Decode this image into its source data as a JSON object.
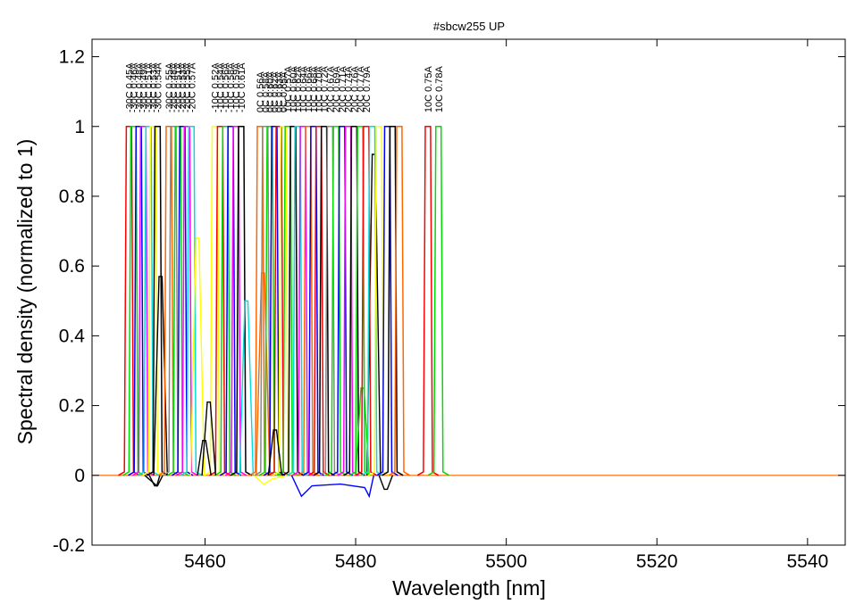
{
  "chart_data": {
    "type": "line",
    "title": "#sbcw255 UP",
    "xlabel": "Wavelength [nm]",
    "ylabel": "Spectral density (normalized to 1)",
    "xlim": [
      5445,
      5545
    ],
    "ylim": [
      -0.2,
      1.25
    ],
    "x_ticks": [
      5460,
      5480,
      5500,
      5520,
      5540
    ],
    "y_ticks": [
      -0.2,
      0,
      0.2,
      0.4,
      0.6,
      0.8,
      1,
      1.2
    ],
    "y_tick_labels": [
      "-0.2",
      "0",
      "0.2",
      "0.4",
      "0.6",
      "0.8",
      "1",
      "1.2"
    ],
    "grid": false,
    "peak_width_nm": 0.35,
    "series": [
      {
        "label": "-30C 0.45A",
        "center": 5449.9,
        "color": "#ff0000",
        "extras": []
      },
      {
        "label": "-30C 0.46A",
        "center": 5450.5,
        "color": "#00dd00",
        "extras": []
      },
      {
        "label": "-30C 0.48A",
        "center": 5451.2,
        "color": "#0000ff",
        "extras": []
      },
      {
        "label": "-30C 0.49A",
        "center": 5451.8,
        "color": "#ff00ff",
        "extras": []
      },
      {
        "label": "-30C 0.51A",
        "center": 5452.5,
        "color": "#00dddd",
        "extras": []
      },
      {
        "label": "-30C 0.53A",
        "center": 5453.1,
        "color": "#ffff00",
        "extras": []
      },
      {
        "label": "-30C 0.54A",
        "center": 5453.7,
        "color": "#000000",
        "extras": [
          [
            5453.5,
            -0.03
          ],
          [
            5454.1,
            0.57
          ]
        ]
      },
      {
        "label": "-30C 0.55A",
        "center": 5455.2,
        "color": "#ff6600",
        "extras": []
      },
      {
        "label": "-20C 0.48A",
        "center": 5455.8,
        "color": "#888888",
        "extras": []
      },
      {
        "label": "-20C 0.51A",
        "center": 5456.4,
        "color": "#00dd00",
        "extras": []
      },
      {
        "label": "-20C 0.53A",
        "center": 5457.0,
        "color": "#0000ff",
        "extras": []
      },
      {
        "label": "-20C 0.55A",
        "center": 5457.6,
        "color": "#ff00ff",
        "extras": []
      },
      {
        "label": "-20C 0.57A",
        "center": 5458.2,
        "color": "#00dddd",
        "extras": []
      },
      {
        "label": "-10C 0.52A",
        "center": 5461.3,
        "color": "#ffff00",
        "extras": [
          [
            5459.0,
            0.68
          ]
        ]
      },
      {
        "label": "-10C 0.54A",
        "center": 5462.0,
        "color": "#ff0000",
        "extras": []
      },
      {
        "label": "-10C 0.56A",
        "center": 5462.7,
        "color": "#00dd00",
        "extras": []
      },
      {
        "label": "-10C 0.58A",
        "center": 5463.4,
        "color": "#0000ff",
        "extras": []
      },
      {
        "label": "-10C 0.59A",
        "center": 5464.1,
        "color": "#ff00ff",
        "extras": []
      },
      {
        "label": "-10C 0.61A",
        "center": 5464.8,
        "color": "#000000",
        "extras": [
          [
            5460.5,
            0.21
          ],
          [
            5459.9,
            0.1
          ]
        ]
      },
      {
        "label": "0C 0.56A",
        "center": 5467.3,
        "color": "#ff6600",
        "extras": [
          [
            5467.7,
            0.58
          ]
        ]
      },
      {
        "label": "0C 0.58A",
        "center": 5468.0,
        "color": "#888888",
        "extras": []
      },
      {
        "label": "0C 0.60A",
        "center": 5468.6,
        "color": "#00dd00",
        "extras": []
      },
      {
        "label": "0C 0.62A",
        "center": 5469.2,
        "color": "#0000ff",
        "extras": []
      },
      {
        "label": "0C 0.63A",
        "center": 5469.8,
        "color": "#ff0000",
        "extras": []
      },
      {
        "label": "0C 0.65A",
        "center": 5470.4,
        "color": "#ffff00",
        "extras": []
      },
      {
        "label": "10C 0.57A",
        "center": 5471.0,
        "color": "#00dd00",
        "extras": []
      },
      {
        "label": "10C 0.60A",
        "center": 5471.7,
        "color": "#000000",
        "extras": [
          [
            5469.3,
            0.13
          ]
        ]
      },
      {
        "label": "10C 0.62A",
        "center": 5472.3,
        "color": "#00dddd",
        "extras": [
          [
            5465.5,
            0.5
          ]
        ]
      },
      {
        "label": "10C 0.64A",
        "center": 5473.0,
        "color": "#ff00ff",
        "extras": []
      },
      {
        "label": "10C 0.66A",
        "center": 5473.7,
        "color": "#ff6600",
        "extras": []
      },
      {
        "label": "10C 0.68A",
        "center": 5474.4,
        "color": "#0000ff",
        "extras": []
      },
      {
        "label": "10C 0.70A",
        "center": 5475.1,
        "color": "#ff0000",
        "extras": []
      },
      {
        "label": "10C 0.72A",
        "center": 5475.8,
        "color": "#000000",
        "extras": []
      },
      {
        "label": "20C 0.67A",
        "center": 5476.6,
        "color": "#888888",
        "extras": []
      },
      {
        "label": "20C 0.69A",
        "center": 5477.4,
        "color": "#00dd00",
        "extras": []
      },
      {
        "label": "20C 0.71A",
        "center": 5478.2,
        "color": "#0000ff",
        "extras": []
      },
      {
        "label": "20C 0.74A",
        "center": 5479.0,
        "color": "#ff00ff",
        "extras": []
      },
      {
        "label": "20C 0.76A",
        "center": 5479.8,
        "color": "#000000",
        "extras": [
          [
            5482.4,
            0.92
          ]
        ]
      },
      {
        "label": "20C 0.77A",
        "center": 5480.6,
        "color": "#00dd00",
        "extras": [
          [
            5480.9,
            0.25
          ]
        ]
      },
      {
        "label": "20C 0.79A",
        "center": 5481.4,
        "color": "#ff0000",
        "extras": []
      },
      {
        "label": "10C 0.75A",
        "center": 5489.6,
        "color": "#ff0000",
        "extras": []
      },
      {
        "label": "10C 0.78A",
        "center": 5491.0,
        "color": "#00dd00",
        "extras": []
      },
      {
        "label": "",
        "center": 5482.2,
        "color": "#00dddd",
        "extras": []
      },
      {
        "label": "",
        "center": 5483.1,
        "color": "#ffff00",
        "extras": []
      },
      {
        "label": "",
        "center": 5484.2,
        "color": "#0000ff",
        "extras": []
      },
      {
        "label": "",
        "center": 5484.9,
        "color": "#000000",
        "extras": [
          [
            5484.0,
            -0.04
          ]
        ]
      },
      {
        "label": "",
        "center": 5485.8,
        "color": "#ff6600",
        "extras": []
      }
    ],
    "baseline_shapes": [
      {
        "color": "#0000ff",
        "points": [
          [
            5471.5,
            0
          ],
          [
            5472.8,
            -0.06
          ],
          [
            5474.2,
            -0.03
          ],
          [
            5478.0,
            -0.025
          ],
          [
            5481.2,
            -0.035
          ],
          [
            5481.8,
            -0.06
          ],
          [
            5482.4,
            0
          ]
        ]
      },
      {
        "color": "#ffff00",
        "points": [
          [
            5466.5,
            0
          ],
          [
            5467.8,
            -0.025
          ],
          [
            5469.0,
            -0.01
          ],
          [
            5471.0,
            0
          ]
        ]
      },
      {
        "color": "#000000",
        "points": [
          [
            5452.0,
            0
          ],
          [
            5453.6,
            -0.03
          ],
          [
            5454.0,
            0
          ]
        ]
      }
    ]
  }
}
